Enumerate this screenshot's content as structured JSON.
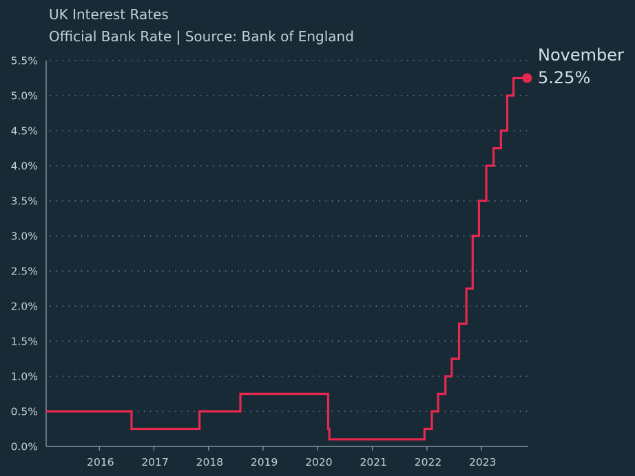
{
  "chart_data": {
    "type": "line",
    "title": "UK Interest Rates",
    "subtitle": "Official Bank Rate | Source: Bank of England",
    "xlabel": "",
    "ylabel": "",
    "y_ticks": [
      "0.0%",
      "0.5%",
      "1.0%",
      "1.5%",
      "2.0%",
      "2.5%",
      "3.0%",
      "3.5%",
      "4.0%",
      "4.5%",
      "5.0%",
      "5.5%"
    ],
    "x_ticks": [
      "2016",
      "2017",
      "2018",
      "2019",
      "2020",
      "2021",
      "2022",
      "2023"
    ],
    "ylim": [
      0,
      5.5
    ],
    "grid": "horizontal dotted",
    "line_color": "#e8284e",
    "series": [
      {
        "step": "post",
        "points": [
          [
            "2015-03-01",
            0.5
          ],
          [
            "2016-08-04",
            0.25
          ],
          [
            "2017-11-02",
            0.5
          ],
          [
            "2018-08-02",
            0.75
          ],
          [
            "2020-03-11",
            0.25
          ],
          [
            "2020-03-19",
            0.1
          ],
          [
            "2021-12-16",
            0.25
          ],
          [
            "2022-02-03",
            0.5
          ],
          [
            "2022-03-17",
            0.75
          ],
          [
            "2022-05-05",
            1.0
          ],
          [
            "2022-06-16",
            1.25
          ],
          [
            "2022-08-04",
            1.75
          ],
          [
            "2022-09-22",
            2.25
          ],
          [
            "2022-11-03",
            3.0
          ],
          [
            "2022-12-15",
            3.5
          ],
          [
            "2023-02-02",
            4.0
          ],
          [
            "2023-03-23",
            4.25
          ],
          [
            "2023-05-11",
            4.5
          ],
          [
            "2023-06-22",
            5.0
          ],
          [
            "2023-08-03",
            5.25
          ],
          [
            "2023-11-02",
            5.25
          ]
        ]
      }
    ],
    "end_label": {
      "month": "November",
      "value": "5.25%"
    }
  }
}
